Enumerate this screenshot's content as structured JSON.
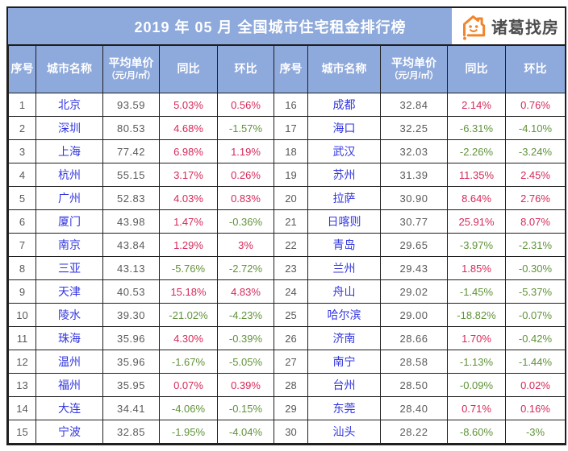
{
  "title": "2019 年 05 月  全国城市住宅租金排行榜",
  "logo": {
    "brand": "诸葛找房",
    "icon": "house-smiley-icon"
  },
  "columns": {
    "rank": "序号",
    "city": "城市名称",
    "price": "平均单价",
    "price_unit": "（元/月/㎡）",
    "yoy": "同比",
    "mom": "环比"
  },
  "colors": {
    "header_bg": "#8EA9DB",
    "border": "#1f1f1f",
    "city_text": "#3236E0",
    "positive": "#D6295A",
    "negative": "#61933A",
    "muted_text": "#595959",
    "logo_orange": "#F2852B",
    "title_text": "#FFFFFF"
  },
  "chart_data": {
    "type": "table",
    "title": "2019 年 05 月 全国城市住宅租金排行榜",
    "column_headers": [
      "序号",
      "城市名称",
      "平均单价（元/月/㎡）",
      "同比",
      "环比"
    ],
    "tables": [
      {
        "rows": [
          {
            "rank": "1",
            "city": "北京",
            "price": "93.59",
            "yoy": "5.03%",
            "mom": "0.56%"
          },
          {
            "rank": "2",
            "city": "深圳",
            "price": "80.53",
            "yoy": "4.68%",
            "mom": "-1.57%"
          },
          {
            "rank": "3",
            "city": "上海",
            "price": "77.42",
            "yoy": "6.98%",
            "mom": "1.19%"
          },
          {
            "rank": "4",
            "city": "杭州",
            "price": "55.15",
            "yoy": "3.17%",
            "mom": "0.26%"
          },
          {
            "rank": "5",
            "city": "广州",
            "price": "52.83",
            "yoy": "4.03%",
            "mom": "0.83%"
          },
          {
            "rank": "6",
            "city": "厦门",
            "price": "43.98",
            "yoy": "1.47%",
            "mom": "-0.36%"
          },
          {
            "rank": "7",
            "city": "南京",
            "price": "43.84",
            "yoy": "1.29%",
            "mom": "3%"
          },
          {
            "rank": "8",
            "city": "三亚",
            "price": "43.13",
            "yoy": "-5.76%",
            "mom": "-2.72%"
          },
          {
            "rank": "9",
            "city": "天津",
            "price": "40.53",
            "yoy": "15.18%",
            "mom": "4.83%"
          },
          {
            "rank": "10",
            "city": "陵水",
            "price": "39.30",
            "yoy": "-21.02%",
            "mom": "-4.23%"
          },
          {
            "rank": "11",
            "city": "珠海",
            "price": "35.96",
            "yoy": "4.30%",
            "mom": "-0.39%"
          },
          {
            "rank": "12",
            "city": "温州",
            "price": "35.96",
            "yoy": "-1.67%",
            "mom": "-5.05%"
          },
          {
            "rank": "13",
            "city": "福州",
            "price": "35.95",
            "yoy": "0.07%",
            "mom": "0.39%"
          },
          {
            "rank": "14",
            "city": "大连",
            "price": "34.41",
            "yoy": "-4.06%",
            "mom": "-0.15%"
          },
          {
            "rank": "15",
            "city": "宁波",
            "price": "32.85",
            "yoy": "-1.95%",
            "mom": "-4.04%"
          }
        ]
      },
      {
        "rows": [
          {
            "rank": "16",
            "city": "成都",
            "price": "32.84",
            "yoy": "2.14%",
            "mom": "0.76%"
          },
          {
            "rank": "17",
            "city": "海口",
            "price": "32.25",
            "yoy": "-6.31%",
            "mom": "-4.10%"
          },
          {
            "rank": "18",
            "city": "武汉",
            "price": "32.03",
            "yoy": "-2.26%",
            "mom": "-3.24%"
          },
          {
            "rank": "19",
            "city": "苏州",
            "price": "31.39",
            "yoy": "11.35%",
            "mom": "2.45%"
          },
          {
            "rank": "20",
            "city": "拉萨",
            "price": "30.90",
            "yoy": "8.64%",
            "mom": "2.76%"
          },
          {
            "rank": "21",
            "city": "日喀则",
            "price": "30.77",
            "yoy": "25.91%",
            "mom": "8.07%"
          },
          {
            "rank": "22",
            "city": "青岛",
            "price": "29.65",
            "yoy": "-3.97%",
            "mom": "-2.31%"
          },
          {
            "rank": "23",
            "city": "兰州",
            "price": "29.43",
            "yoy": "1.85%",
            "mom": "-0.30%"
          },
          {
            "rank": "24",
            "city": "舟山",
            "price": "29.02",
            "yoy": "-1.45%",
            "mom": "-5.37%"
          },
          {
            "rank": "25",
            "city": "哈尔滨",
            "price": "29.00",
            "yoy": "-18.82%",
            "mom": "-0.07%"
          },
          {
            "rank": "26",
            "city": "济南",
            "price": "28.66",
            "yoy": "1.70%",
            "mom": "-0.42%"
          },
          {
            "rank": "27",
            "city": "南宁",
            "price": "28.58",
            "yoy": "-1.13%",
            "mom": "-1.44%"
          },
          {
            "rank": "28",
            "city": "台州",
            "price": "28.50",
            "yoy": "-0.09%",
            "mom": "0.02%"
          },
          {
            "rank": "29",
            "city": "东莞",
            "price": "28.40",
            "yoy": "0.71%",
            "mom": "0.16%"
          },
          {
            "rank": "30",
            "city": "汕头",
            "price": "28.22",
            "yoy": "-8.60%",
            "mom": "-3%"
          }
        ]
      }
    ]
  }
}
